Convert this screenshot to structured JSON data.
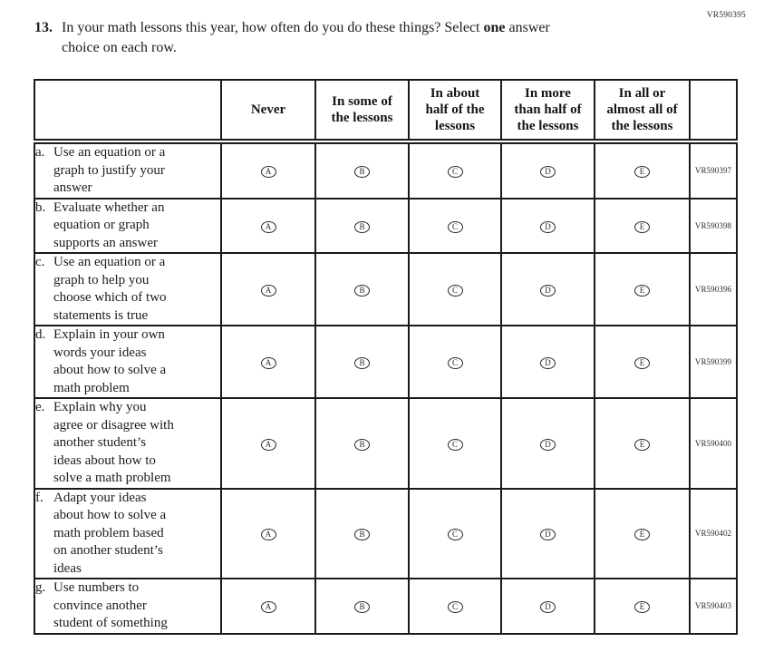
{
  "page_code": "VR590395",
  "question": {
    "number": "13.",
    "line1_pre": "In your math lessons this year, how often do you do these things? Select ",
    "line1_bold": "one",
    "line1_post": " answer",
    "line2": "choice on each row."
  },
  "table": {
    "header": {
      "col0": [
        ""
      ],
      "col1": [
        "Never"
      ],
      "col2": [
        "In some of",
        "the lessons"
      ],
      "col3": [
        "In about",
        "half of the",
        "lessons"
      ],
      "col4": [
        "In more",
        "than half of",
        "the lessons"
      ],
      "col5": [
        "In all or",
        "almost all of",
        "the lessons"
      ],
      "col6": [
        ""
      ]
    },
    "options": [
      "A",
      "B",
      "C",
      "D",
      "E"
    ],
    "rows": [
      {
        "letter": "a.",
        "lines": [
          "Use an equation or a",
          "graph to justify your",
          "answer"
        ],
        "code": "VR590397"
      },
      {
        "letter": "b.",
        "lines": [
          "Evaluate whether an",
          "equation or graph",
          "supports an answer"
        ],
        "code": "VR590398"
      },
      {
        "letter": "c.",
        "lines": [
          "Use an equation or a",
          "graph to help you",
          "choose which of two",
          "statements is true"
        ],
        "code": "VR590396"
      },
      {
        "letter": "d.",
        "lines": [
          "Explain in your own",
          "words your ideas",
          "about how to solve a",
          "math problem"
        ],
        "code": "VR590399"
      },
      {
        "letter": "e.",
        "lines": [
          "Explain why you",
          "agree or disagree with",
          "another student’s",
          "ideas about how to",
          "solve a math problem"
        ],
        "code": "VR590400"
      },
      {
        "letter": "f.",
        "lines": [
          "Adapt your ideas",
          "about how to solve a",
          "math problem based",
          "on another student’s",
          "ideas"
        ],
        "code": "VR590402"
      },
      {
        "letter": "g.",
        "lines": [
          "Use numbers to",
          "convince another",
          "student of something"
        ],
        "code": "VR590403"
      }
    ]
  }
}
